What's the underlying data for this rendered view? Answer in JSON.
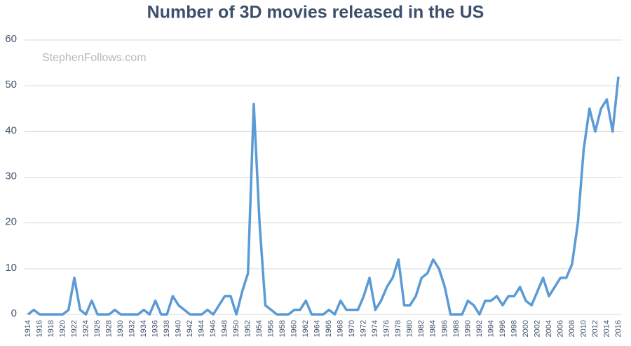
{
  "chart_data": {
    "type": "line",
    "title": "Number of 3D movies released in the US",
    "watermark": "StephenFollows.com",
    "x": [
      1914,
      1915,
      1916,
      1917,
      1918,
      1919,
      1920,
      1921,
      1922,
      1923,
      1924,
      1925,
      1926,
      1927,
      1928,
      1929,
      1930,
      1931,
      1932,
      1933,
      1934,
      1935,
      1936,
      1937,
      1938,
      1939,
      1940,
      1941,
      1942,
      1943,
      1944,
      1945,
      1946,
      1947,
      1948,
      1949,
      1950,
      1951,
      1952,
      1953,
      1954,
      1955,
      1956,
      1957,
      1958,
      1959,
      1960,
      1961,
      1962,
      1963,
      1964,
      1965,
      1966,
      1967,
      1968,
      1969,
      1970,
      1971,
      1972,
      1973,
      1974,
      1975,
      1976,
      1977,
      1978,
      1979,
      1980,
      1981,
      1982,
      1983,
      1984,
      1985,
      1986,
      1987,
      1988,
      1989,
      1990,
      1991,
      1992,
      1993,
      1994,
      1995,
      1996,
      1997,
      1998,
      1999,
      2000,
      2001,
      2002,
      2003,
      2004,
      2005,
      2006,
      2007,
      2008,
      2009,
      2010,
      2011,
      2012,
      2013,
      2014,
      2015,
      2016
    ],
    "values": [
      0,
      1,
      0,
      0,
      0,
      0,
      0,
      1,
      8,
      1,
      0,
      3,
      0,
      0,
      0,
      1,
      0,
      0,
      0,
      0,
      1,
      0,
      3,
      0,
      0,
      4,
      2,
      1,
      0,
      0,
      0,
      1,
      0,
      2,
      4,
      4,
      0,
      5,
      9,
      46,
      20,
      2,
      1,
      0,
      0,
      0,
      1,
      1,
      3,
      0,
      0,
      0,
      1,
      0,
      3,
      1,
      1,
      1,
      4,
      8,
      1,
      3,
      6,
      8,
      12,
      2,
      2,
      4,
      8,
      9,
      12,
      10,
      6,
      0,
      0,
      0,
      3,
      2,
      0,
      3,
      3,
      4,
      2,
      4,
      4,
      6,
      3,
      2,
      5,
      8,
      4,
      6,
      8,
      8,
      11,
      20,
      36,
      45,
      40,
      45,
      47,
      40,
      52
    ],
    "color": "#5b9bd5",
    "xlim": [
      1914,
      2016
    ],
    "xticks": [
      1914,
      1916,
      1918,
      1920,
      1922,
      1924,
      1926,
      1928,
      1930,
      1932,
      1934,
      1936,
      1938,
      1940,
      1942,
      1944,
      1946,
      1948,
      1950,
      1952,
      1954,
      1956,
      1958,
      1960,
      1962,
      1964,
      1966,
      1968,
      1970,
      1972,
      1974,
      1976,
      1978,
      1980,
      1982,
      1984,
      1986,
      1988,
      1990,
      1992,
      1994,
      1996,
      1998,
      2000,
      2002,
      2004,
      2006,
      2008,
      2010,
      2012,
      2014,
      2016
    ],
    "ylim": [
      0,
      60
    ],
    "yticks": [
      0,
      10,
      20,
      30,
      40,
      50,
      60
    ],
    "grid": true
  }
}
